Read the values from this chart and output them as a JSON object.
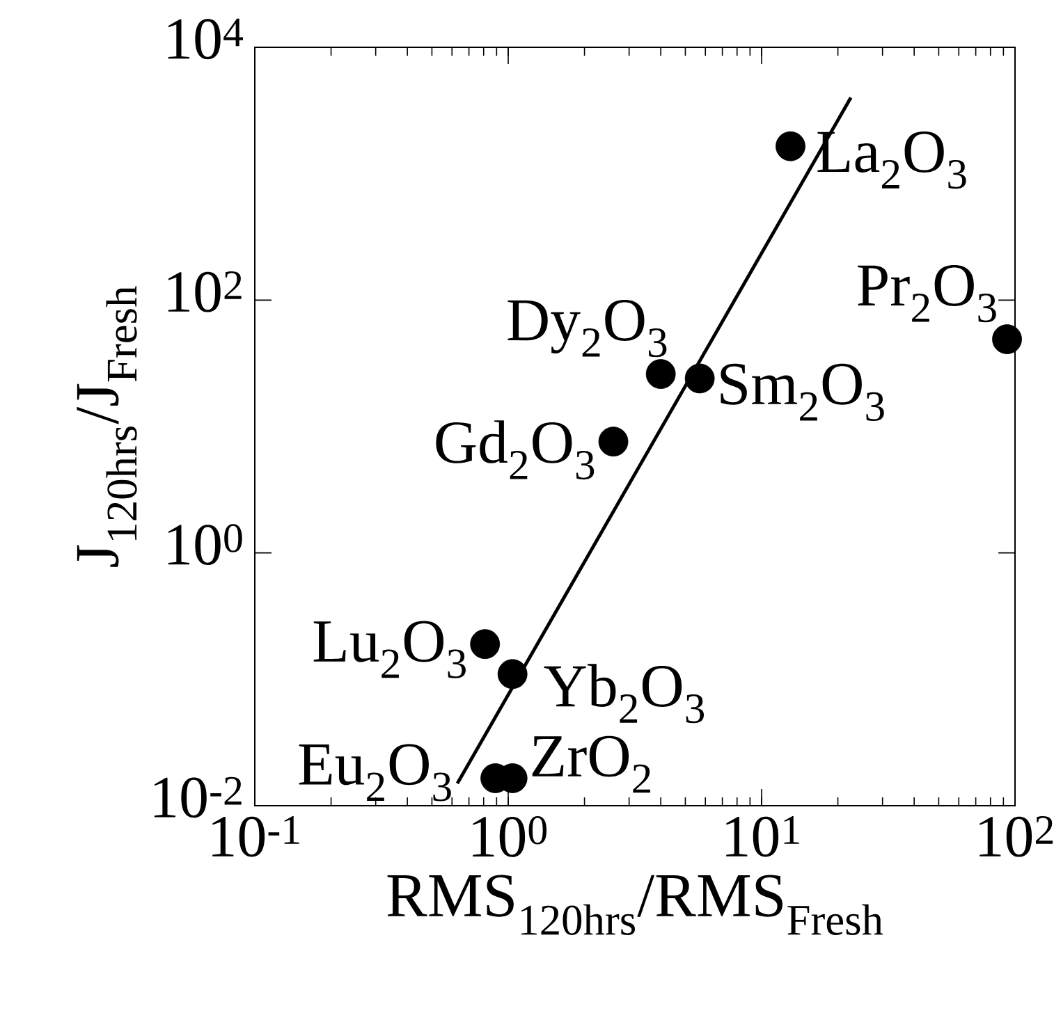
{
  "chart_data": {
    "type": "scatter",
    "log": "xy",
    "marker": "circle",
    "xlabel": "RMS$_{120hrs}$/RMS$_{Fresh}$",
    "ylabel": "J$_{120hrs}$/J$_{Fresh}$",
    "xlim": [
      0.1,
      100
    ],
    "ylim": [
      0.01,
      10000
    ],
    "xticks": [
      {
        "value": 0.1,
        "label": "10$^{-1}$"
      },
      {
        "value": 1,
        "label": "10$^{0}$"
      },
      {
        "value": 10,
        "label": "10$^{1}$"
      },
      {
        "value": 100,
        "label": "10$^{2}$"
      }
    ],
    "yticks": [
      {
        "value": 0.01,
        "label": "10$^{-2}$"
      },
      {
        "value": 1,
        "label": "10$^{0}$"
      },
      {
        "value": 100,
        "label": "10$^{2}$"
      },
      {
        "value": 10000,
        "label": "10$^{4}$"
      }
    ],
    "series": [
      {
        "color": "#000000",
        "x": [
          13,
          93,
          4.0,
          5.7,
          2.6,
          0.81,
          1.04,
          0.89,
          1.04
        ],
        "values": [
          1650,
          49,
          26,
          24,
          7.6,
          0.19,
          0.11,
          0.0165,
          0.0165
        ]
      },
      {
        "type": "line",
        "marker": "none",
        "color": "#000000",
        "x": [
          0.63,
          22.5
        ],
        "values": [
          0.015,
          4000
        ]
      }
    ],
    "annotations": [
      {
        "text": "La$_{2}$O$_{3}$",
        "x": 13,
        "y": 1650
      },
      {
        "text": "Pr$_{2}$O$_{3}$",
        "x": 93,
        "y": 49
      },
      {
        "text": "Dy$_{2}$O$_{3}$",
        "x": 4.0,
        "y": 26
      },
      {
        "text": "Sm$_{2}$O$_{3}$",
        "x": 5.7,
        "y": 24
      },
      {
        "text": "Gd$_{2}$O$_{3}$",
        "x": 2.6,
        "y": 7.6
      },
      {
        "text": "Lu$_{2}$O$_{3}$",
        "x": 0.81,
        "y": 0.19
      },
      {
        "text": "Yb$_{2}$O$_{3}$",
        "x": 1.04,
        "y": 0.11
      },
      {
        "text": "Eu$_{2}$O$_{3}$",
        "x": 0.89,
        "y": 0.0165
      },
      {
        "text": "ZrO$_{2}$",
        "x": 1.04,
        "y": 0.0165
      }
    ]
  }
}
